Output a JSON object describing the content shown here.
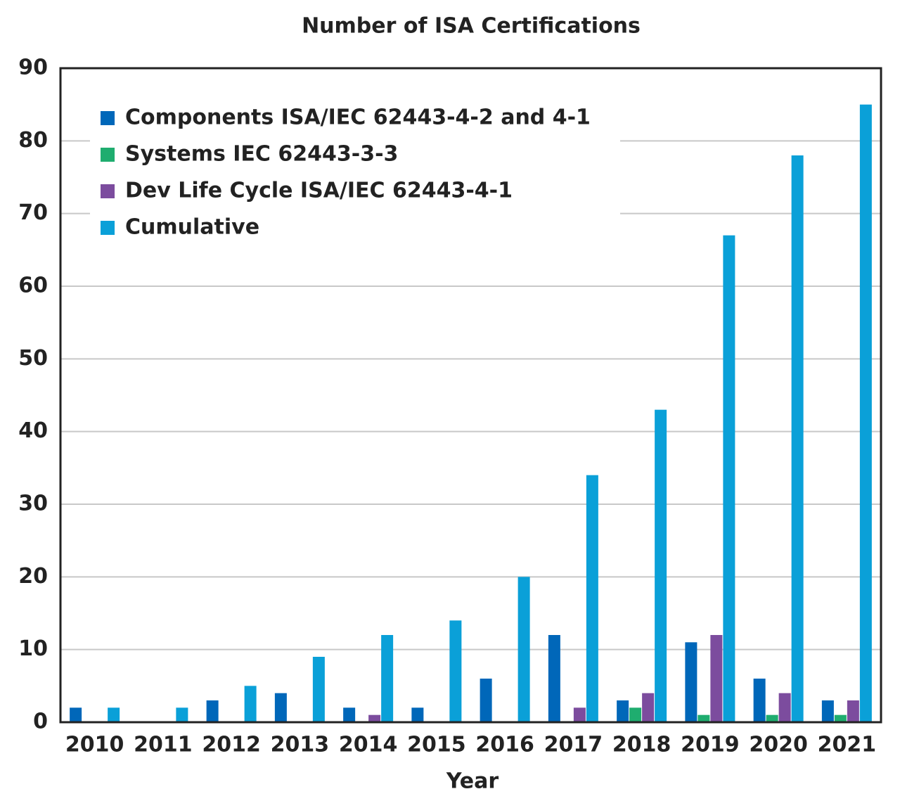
{
  "chart_data": {
    "type": "bar",
    "title": "Number of ISA Certifications",
    "x_label": "Year",
    "categories": [
      "2010",
      "2011",
      "2012",
      "2013",
      "2014",
      "2015",
      "2016",
      "2017",
      "2018",
      "2019",
      "2020",
      "2021"
    ],
    "series": [
      {
        "name": "Components ISA/IEC 62443-4-2 and 4-1",
        "color": "#0067b9",
        "values": [
          2,
          0,
          3,
          4,
          2,
          2,
          6,
          12,
          3,
          11,
          6,
          3
        ]
      },
      {
        "name": "Systems IEC 62443-3-3",
        "color": "#1fad6f",
        "values": [
          0,
          0,
          0,
          0,
          0,
          0,
          0,
          0,
          2,
          1,
          1,
          1
        ]
      },
      {
        "name": "Dev Life Cycle ISA/IEC 62443-4-1",
        "color": "#7c4c9e",
        "values": [
          0,
          0,
          0,
          0,
          1,
          0,
          0,
          2,
          4,
          12,
          4,
          3
        ]
      },
      {
        "name": "Cumulative",
        "color": "#0aa0d8",
        "values": [
          2,
          2,
          5,
          9,
          12,
          14,
          20,
          34,
          43,
          67,
          78,
          85
        ]
      }
    ],
    "ylim": [
      0,
      90
    ],
    "yticks": [
      0,
      10,
      20,
      30,
      40,
      50,
      60,
      70,
      80,
      90
    ],
    "grid": true,
    "legend": "upper left"
  }
}
